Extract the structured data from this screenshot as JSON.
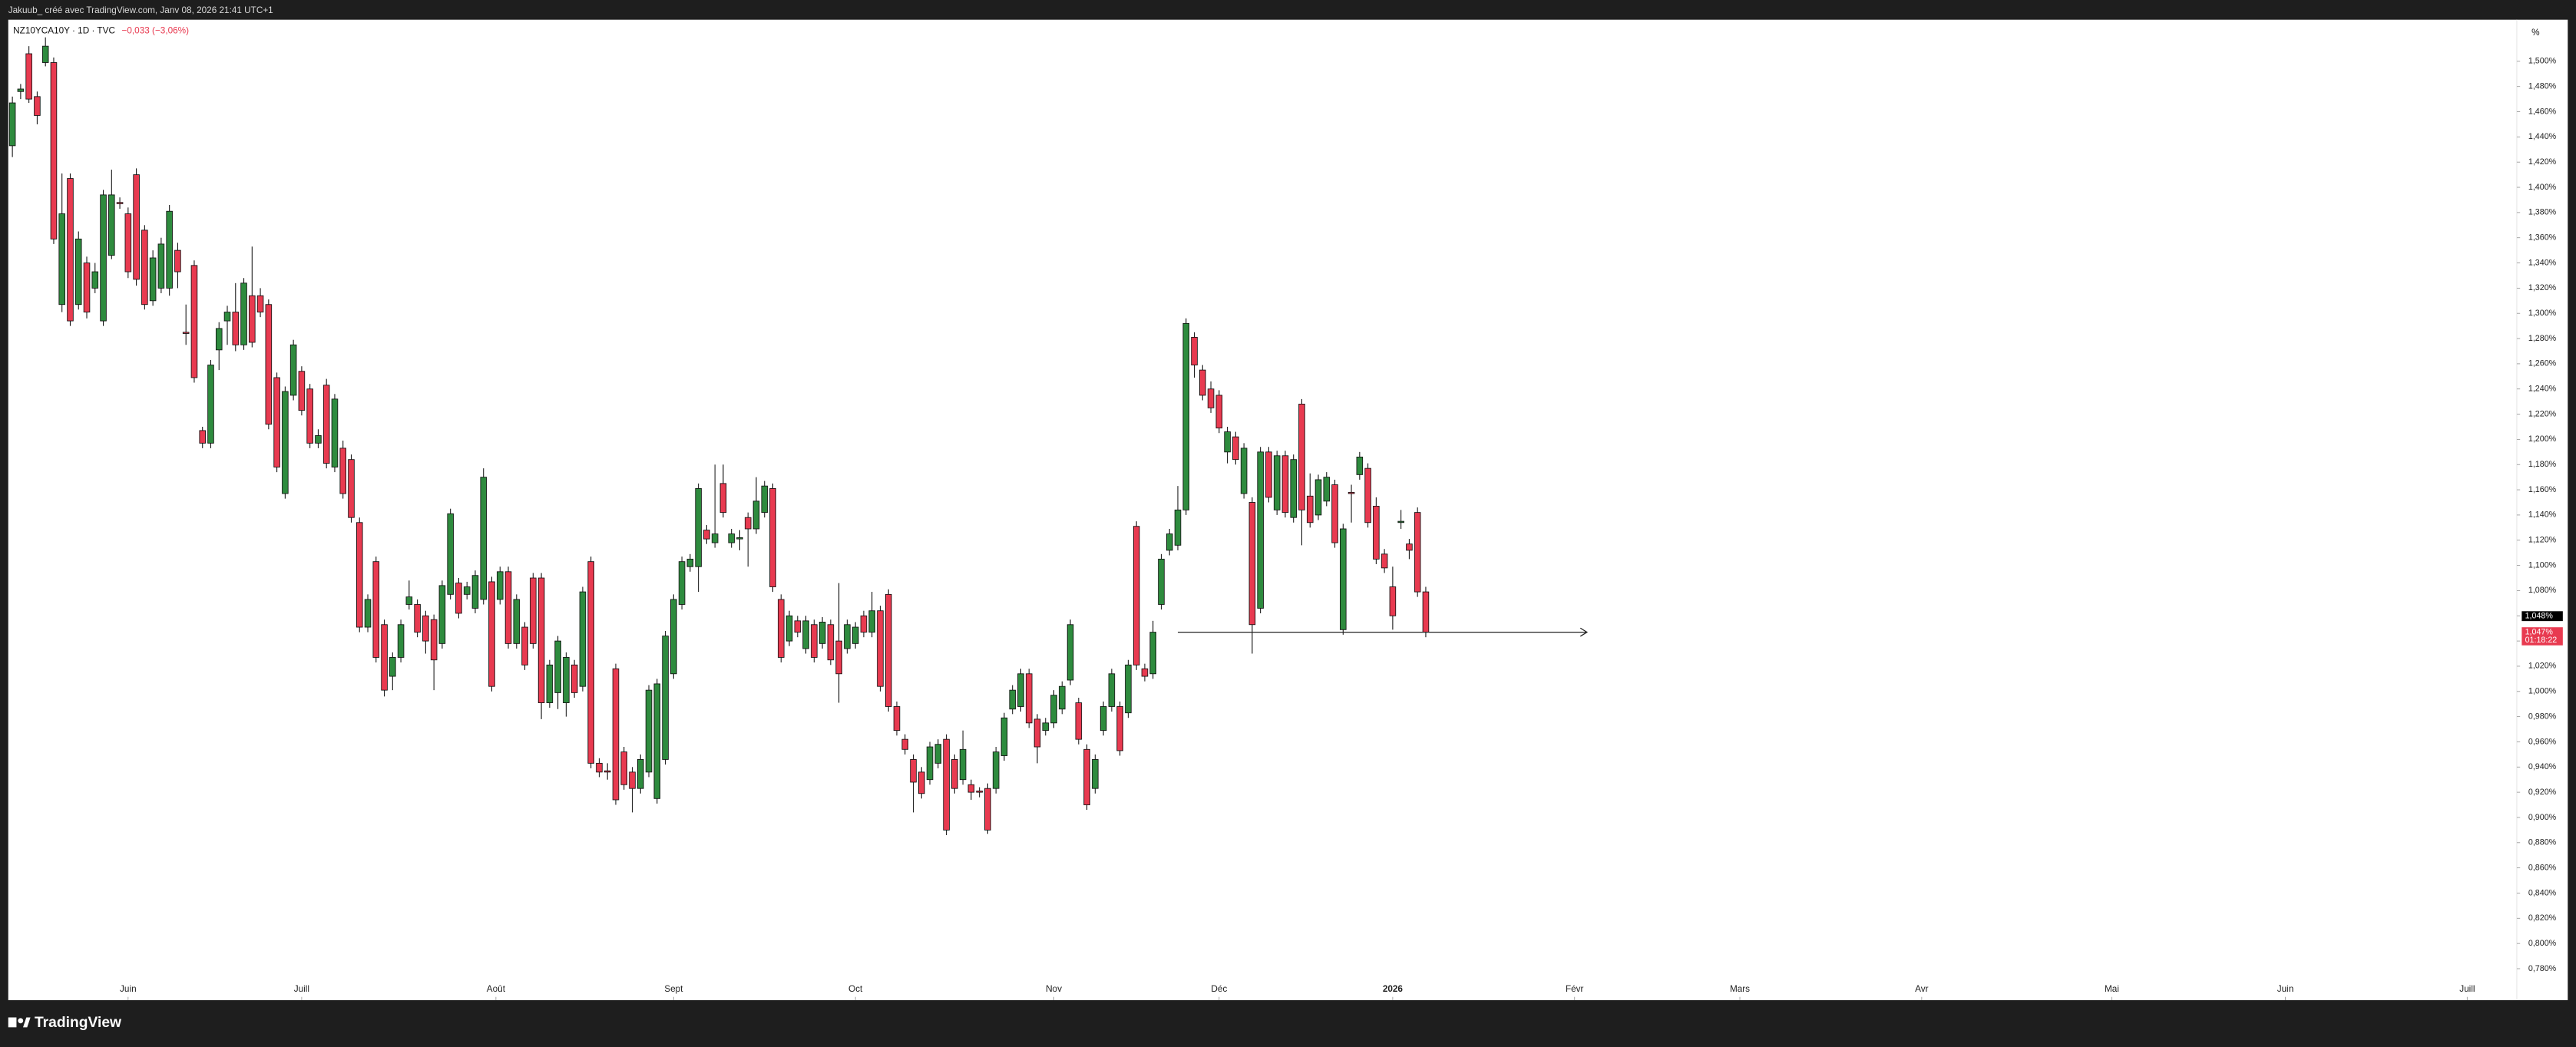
{
  "chart_data": {
    "type": "candlestick",
    "header": "Jakuub_ créé avec TradingView.com, Janv 08, 2026 21:41 UTC+1",
    "symbol": "NZ10YCA10Y · 1D · TVC",
    "change": "−0,033 (−3,06%)",
    "unit": "%",
    "brand": "TradingView",
    "up_color": "#2e8b3e",
    "down_color": "#e83a50",
    "ylim": [
      0.755,
      1.533
    ],
    "xlim": [
      -0.5,
      303
    ],
    "yticks": [
      {
        "value": 1.5,
        "label": "1,500%"
      },
      {
        "value": 1.48,
        "label": "1,480%"
      },
      {
        "value": 1.46,
        "label": "1,460%"
      },
      {
        "value": 1.44,
        "label": "1,440%"
      },
      {
        "value": 1.42,
        "label": "1,420%"
      },
      {
        "value": 1.4,
        "label": "1,400%"
      },
      {
        "value": 1.38,
        "label": "1,380%"
      },
      {
        "value": 1.36,
        "label": "1,360%"
      },
      {
        "value": 1.34,
        "label": "1,340%"
      },
      {
        "value": 1.32,
        "label": "1,320%"
      },
      {
        "value": 1.3,
        "label": "1,300%"
      },
      {
        "value": 1.28,
        "label": "1,280%"
      },
      {
        "value": 1.26,
        "label": "1,260%"
      },
      {
        "value": 1.24,
        "label": "1,240%"
      },
      {
        "value": 1.22,
        "label": "1,220%"
      },
      {
        "value": 1.2,
        "label": "1,200%"
      },
      {
        "value": 1.18,
        "label": "1,180%"
      },
      {
        "value": 1.16,
        "label": "1,160%"
      },
      {
        "value": 1.14,
        "label": "1,140%"
      },
      {
        "value": 1.12,
        "label": "1,120%"
      },
      {
        "value": 1.1,
        "label": "1,100%"
      },
      {
        "value": 1.08,
        "label": "1,080%"
      },
      {
        "value": 1.06,
        "label": "1,060%"
      },
      {
        "value": 1.04,
        "label": "1,040%"
      },
      {
        "value": 1.02,
        "label": "1,020%"
      },
      {
        "value": 1.0,
        "label": "1,000%"
      },
      {
        "value": 0.98,
        "label": "0,980%"
      },
      {
        "value": 0.96,
        "label": "0,960%"
      },
      {
        "value": 0.94,
        "label": "0,940%"
      },
      {
        "value": 0.92,
        "label": "0,920%"
      },
      {
        "value": 0.9,
        "label": "0,900%"
      },
      {
        "value": 0.88,
        "label": "0,880%"
      },
      {
        "value": 0.86,
        "label": "0,860%"
      },
      {
        "value": 0.84,
        "label": "0,840%"
      },
      {
        "value": 0.82,
        "label": "0,820%"
      },
      {
        "value": 0.8,
        "label": "0,800%"
      },
      {
        "value": 0.78,
        "label": "0,780%"
      }
    ],
    "xticks": [
      {
        "value": 14,
        "label": "Juin"
      },
      {
        "value": 35,
        "label": "Juill"
      },
      {
        "value": 58.5,
        "label": "Août"
      },
      {
        "value": 80,
        "label": "Sept"
      },
      {
        "value": 102,
        "label": "Oct"
      },
      {
        "value": 126,
        "label": "Nov"
      },
      {
        "value": 146,
        "label": "Déc"
      },
      {
        "value": 167,
        "label": "2026",
        "bold": true
      },
      {
        "value": 189,
        "label": "Févr"
      },
      {
        "value": 209,
        "label": "Mars"
      },
      {
        "value": 231,
        "label": "Avr"
      },
      {
        "value": 254,
        "label": "Mai"
      },
      {
        "value": 275,
        "label": "Juin"
      },
      {
        "value": 297,
        "label": "Juill"
      }
    ],
    "ray": {
      "value": 1.047,
      "x_from": 141,
      "x_to": 190.5
    },
    "price_labels": [
      {
        "value": 1.048,
        "label": "1,048%",
        "color": "#000000"
      },
      {
        "value": 1.047,
        "label": "1,047%",
        "countdown": "01:18:22",
        "color": "#e83a50"
      }
    ],
    "ohlc": [
      [
        1.433,
        1.472,
        1.424,
        1.467
      ],
      [
        1.476,
        1.482,
        1.47,
        1.478
      ],
      [
        1.506,
        1.512,
        1.467,
        1.47
      ],
      [
        1.472,
        1.476,
        1.45,
        1.457
      ],
      [
        1.499,
        1.519,
        1.496,
        1.512
      ],
      [
        1.499,
        1.503,
        1.355,
        1.359
      ],
      [
        1.307,
        1.411,
        1.301,
        1.379
      ],
      [
        1.407,
        1.411,
        1.29,
        1.294
      ],
      [
        1.307,
        1.365,
        1.303,
        1.359
      ],
      [
        1.34,
        1.345,
        1.296,
        1.301
      ],
      [
        1.32,
        1.34,
        1.316,
        1.333
      ],
      [
        1.294,
        1.398,
        1.29,
        1.394
      ],
      [
        1.346,
        1.414,
        1.343,
        1.394
      ],
      [
        1.388,
        1.392,
        1.383,
        1.387
      ],
      [
        1.379,
        1.384,
        1.328,
        1.333
      ],
      [
        1.41,
        1.415,
        1.322,
        1.327
      ],
      [
        1.366,
        1.37,
        1.303,
        1.307
      ],
      [
        1.31,
        1.35,
        1.306,
        1.344
      ],
      [
        1.32,
        1.36,
        1.316,
        1.355
      ],
      [
        1.32,
        1.386,
        1.314,
        1.381
      ],
      [
        1.35,
        1.356,
        1.32,
        1.333
      ],
      [
        1.285,
        1.307,
        1.275,
        1.284
      ],
      [
        1.338,
        1.342,
        1.245,
        1.249
      ],
      [
        1.207,
        1.21,
        1.193,
        1.197
      ],
      [
        1.197,
        1.263,
        1.193,
        1.259
      ],
      [
        1.271,
        1.293,
        1.255,
        1.288
      ],
      [
        1.294,
        1.306,
        1.275,
        1.301
      ],
      [
        1.301,
        1.324,
        1.27,
        1.275
      ],
      [
        1.275,
        1.328,
        1.271,
        1.324
      ],
      [
        1.314,
        1.353,
        1.273,
        1.277
      ],
      [
        1.314,
        1.32,
        1.297,
        1.301
      ],
      [
        1.307,
        1.311,
        1.208,
        1.212
      ],
      [
        1.249,
        1.253,
        1.174,
        1.178
      ],
      [
        1.157,
        1.242,
        1.153,
        1.238
      ],
      [
        1.235,
        1.279,
        1.231,
        1.275
      ],
      [
        1.254,
        1.258,
        1.219,
        1.223
      ],
      [
        1.24,
        1.244,
        1.193,
        1.197
      ],
      [
        1.197,
        1.208,
        1.193,
        1.203
      ],
      [
        1.243,
        1.248,
        1.177,
        1.181
      ],
      [
        1.178,
        1.236,
        1.174,
        1.232
      ],
      [
        1.193,
        1.199,
        1.153,
        1.157
      ],
      [
        1.184,
        1.188,
        1.134,
        1.138
      ],
      [
        1.134,
        1.138,
        1.047,
        1.051
      ],
      [
        1.051,
        1.077,
        1.047,
        1.073
      ],
      [
        1.103,
        1.107,
        1.023,
        1.027
      ],
      [
        1.053,
        1.057,
        0.996,
        1.001
      ],
      [
        1.012,
        1.031,
        1.001,
        1.027
      ],
      [
        1.027,
        1.057,
        1.023,
        1.053
      ],
      [
        1.069,
        1.088,
        1.065,
        1.075
      ],
      [
        1.069,
        1.073,
        1.043,
        1.047
      ],
      [
        1.06,
        1.064,
        1.03,
        1.04
      ],
      [
        1.057,
        1.061,
        1.001,
        1.025
      ],
      [
        1.038,
        1.088,
        1.034,
        1.084
      ],
      [
        1.077,
        1.145,
        1.073,
        1.141
      ],
      [
        1.086,
        1.09,
        1.058,
        1.062
      ],
      [
        1.077,
        1.087,
        1.073,
        1.083
      ],
      [
        1.066,
        1.096,
        1.062,
        1.092
      ],
      [
        1.073,
        1.177,
        1.069,
        1.17
      ],
      [
        1.087,
        1.091,
        1.0,
        1.004
      ],
      [
        1.073,
        1.099,
        1.069,
        1.095
      ],
      [
        1.095,
        1.099,
        1.034,
        1.038
      ],
      [
        1.038,
        1.077,
        1.034,
        1.073
      ],
      [
        1.051,
        1.055,
        1.017,
        1.021
      ],
      [
        1.09,
        1.094,
        1.034,
        1.038
      ],
      [
        1.09,
        1.094,
        0.978,
        0.991
      ],
      [
        0.991,
        1.025,
        0.987,
        1.021
      ],
      [
        0.999,
        1.044,
        0.986,
        1.04
      ],
      [
        0.991,
        1.031,
        0.98,
        1.027
      ],
      [
        1.021,
        1.025,
        0.995,
        0.999
      ],
      [
        1.004,
        1.083,
        1.0,
        1.079
      ],
      [
        1.103,
        1.107,
        0.939,
        0.943
      ],
      [
        0.943,
        0.947,
        0.932,
        0.936
      ],
      [
        0.937,
        0.943,
        0.93,
        0.936
      ],
      [
        1.018,
        1.022,
        0.91,
        0.914
      ],
      [
        0.952,
        0.956,
        0.922,
        0.926
      ],
      [
        0.936,
        0.94,
        0.904,
        0.923
      ],
      [
        0.923,
        0.95,
        0.919,
        0.946
      ],
      [
        0.936,
        1.005,
        0.932,
        1.001
      ],
      [
        0.915,
        1.01,
        0.911,
        1.006
      ],
      [
        0.946,
        1.048,
        0.942,
        1.044
      ],
      [
        1.014,
        1.077,
        1.01,
        1.073
      ],
      [
        1.069,
        1.107,
        1.065,
        1.103
      ],
      [
        1.099,
        1.109,
        1.095,
        1.105
      ],
      [
        1.099,
        1.165,
        1.079,
        1.161
      ],
      [
        1.128,
        1.132,
        1.117,
        1.121
      ],
      [
        1.118,
        1.18,
        1.114,
        1.125
      ],
      [
        1.165,
        1.18,
        1.138,
        1.142
      ],
      [
        1.118,
        1.129,
        1.114,
        1.125
      ],
      [
        1.121,
        1.128,
        1.112,
        1.122
      ],
      [
        1.138,
        1.142,
        1.099,
        1.129
      ],
      [
        1.129,
        1.17,
        1.125,
        1.151
      ],
      [
        1.142,
        1.167,
        1.138,
        1.163
      ],
      [
        1.161,
        1.165,
        1.079,
        1.083
      ],
      [
        1.073,
        1.077,
        1.023,
        1.027
      ],
      [
        1.04,
        1.064,
        1.036,
        1.06
      ],
      [
        1.056,
        1.06,
        1.043,
        1.047
      ],
      [
        1.034,
        1.06,
        1.03,
        1.056
      ],
      [
        1.053,
        1.057,
        1.023,
        1.027
      ],
      [
        1.038,
        1.059,
        1.034,
        1.055
      ],
      [
        1.053,
        1.057,
        1.021,
        1.025
      ],
      [
        1.04,
        1.086,
        0.991,
        1.014
      ],
      [
        1.034,
        1.057,
        1.03,
        1.053
      ],
      [
        1.038,
        1.055,
        1.034,
        1.051
      ],
      [
        1.06,
        1.064,
        1.043,
        1.047
      ],
      [
        1.047,
        1.079,
        1.043,
        1.064
      ],
      [
        1.064,
        1.068,
        1.0,
        1.004
      ],
      [
        1.077,
        1.081,
        0.984,
        0.988
      ],
      [
        0.988,
        0.992,
        0.965,
        0.969
      ],
      [
        0.962,
        0.966,
        0.95,
        0.954
      ],
      [
        0.946,
        0.95,
        0.904,
        0.928
      ],
      [
        0.936,
        0.94,
        0.915,
        0.919
      ],
      [
        0.93,
        0.96,
        0.926,
        0.956
      ],
      [
        0.943,
        0.962,
        0.939,
        0.958
      ],
      [
        0.962,
        0.966,
        0.886,
        0.89
      ],
      [
        0.946,
        0.95,
        0.919,
        0.923
      ],
      [
        0.93,
        0.969,
        0.926,
        0.954
      ],
      [
        0.926,
        0.93,
        0.914,
        0.92
      ],
      [
        0.921,
        0.924,
        0.916,
        0.92
      ],
      [
        0.923,
        0.927,
        0.887,
        0.89
      ],
      [
        0.923,
        0.956,
        0.919,
        0.952
      ],
      [
        0.949,
        0.983,
        0.945,
        0.979
      ],
      [
        0.986,
        1.005,
        0.982,
        1.001
      ],
      [
        0.988,
        1.018,
        0.984,
        1.014
      ],
      [
        1.014,
        1.018,
        0.971,
        0.975
      ],
      [
        0.978,
        0.982,
        0.943,
        0.956
      ],
      [
        0.969,
        0.979,
        0.965,
        0.975
      ],
      [
        0.975,
        1.001,
        0.971,
        0.997
      ],
      [
        0.986,
        1.008,
        0.982,
        1.004
      ],
      [
        1.009,
        1.057,
        1.005,
        1.053
      ],
      [
        0.991,
        0.995,
        0.958,
        0.962
      ],
      [
        0.954,
        0.958,
        0.906,
        0.91
      ],
      [
        0.923,
        0.95,
        0.919,
        0.946
      ],
      [
        0.969,
        0.992,
        0.965,
        0.988
      ],
      [
        0.988,
        1.018,
        0.984,
        1.014
      ],
      [
        0.988,
        0.992,
        0.949,
        0.953
      ],
      [
        0.983,
        1.025,
        0.979,
        1.021
      ],
      [
        1.131,
        1.135,
        1.017,
        1.021
      ],
      [
        1.018,
        1.022,
        1.008,
        1.012
      ],
      [
        1.014,
        1.056,
        1.01,
        1.047
      ],
      [
        1.069,
        1.109,
        1.065,
        1.105
      ],
      [
        1.112,
        1.129,
        1.108,
        1.125
      ],
      [
        1.116,
        1.163,
        1.112,
        1.144
      ],
      [
        1.144,
        1.296,
        1.14,
        1.292
      ],
      [
        1.281,
        1.285,
        1.249,
        1.259
      ],
      [
        1.255,
        1.259,
        1.231,
        1.235
      ],
      [
        1.24,
        1.246,
        1.221,
        1.225
      ],
      [
        1.235,
        1.239,
        1.205,
        1.209
      ],
      [
        1.19,
        1.21,
        1.181,
        1.206
      ],
      [
        1.202,
        1.206,
        1.18,
        1.184
      ],
      [
        1.157,
        1.197,
        1.153,
        1.193
      ],
      [
        1.15,
        1.154,
        1.03,
        1.053
      ],
      [
        1.066,
        1.194,
        1.062,
        1.19
      ],
      [
        1.19,
        1.194,
        1.15,
        1.154
      ],
      [
        1.144,
        1.191,
        1.14,
        1.187
      ],
      [
        1.187,
        1.191,
        1.138,
        1.142
      ],
      [
        1.138,
        1.188,
        1.134,
        1.184
      ],
      [
        1.228,
        1.232,
        1.116,
        1.144
      ],
      [
        1.155,
        1.173,
        1.13,
        1.134
      ],
      [
        1.14,
        1.172,
        1.136,
        1.168
      ],
      [
        1.151,
        1.174,
        1.147,
        1.17
      ],
      [
        1.164,
        1.168,
        1.114,
        1.118
      ],
      [
        1.049,
        1.133,
        1.045,
        1.129
      ],
      [
        1.158,
        1.164,
        1.134,
        1.157
      ],
      [
        1.172,
        1.19,
        1.168,
        1.186
      ],
      [
        1.177,
        1.181,
        1.13,
        1.134
      ],
      [
        1.147,
        1.154,
        1.101,
        1.105
      ],
      [
        1.109,
        1.113,
        1.094,
        1.098
      ],
      [
        1.083,
        1.099,
        1.049,
        1.06
      ],
      [
        1.134,
        1.144,
        1.129,
        1.135
      ],
      [
        1.117,
        1.121,
        1.105,
        1.112
      ],
      [
        1.142,
        1.146,
        1.075,
        1.079
      ],
      [
        1.079,
        1.083,
        1.043,
        1.047
      ]
    ]
  }
}
